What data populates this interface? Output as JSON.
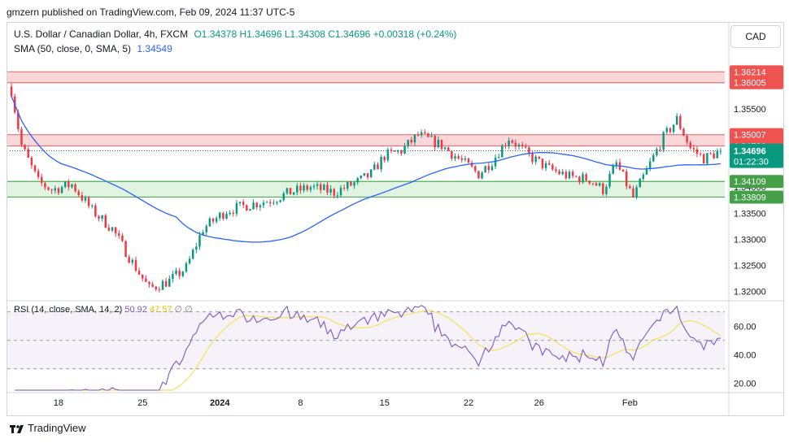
{
  "header": {
    "published": "gmzern published on TradingView.com, Feb 09, 2024 11:37 UTC-5"
  },
  "legend": {
    "symbol": "U.S. Dollar / Canadian Dollar, 4h, FXCM",
    "ohlc": "O1.34378 H1.34696 L1.34308 C1.34696 +0.00318 (+0.24%)",
    "sma_label": "SMA (50, close, 0, SMA, 5)",
    "sma_value": "1.34549",
    "rsi_label": "RSI (14, close, SMA, 14, 2)",
    "rsi_value": "50.92",
    "rsi_ma_value": "47.57",
    "rsi_extra": "∅ ∅"
  },
  "currency_button": "CAD",
  "footer": {
    "brand": "TradingView"
  },
  "colors": {
    "up": "#089981",
    "down": "#f23645",
    "sma": "#2962ff",
    "rsi": "#7e57c2",
    "rsi_ma": "#f5e05b",
    "resistance_fill": "#f7c9cc",
    "support_fill": "#d7f0d8",
    "resistance_line": "#e57373",
    "support_line": "#4caf50"
  },
  "chart_data": {
    "type": "candlestick",
    "title": "U.S. Dollar / Canadian Dollar, 4h, FXCM",
    "xlabel": "",
    "ylabel": "",
    "price_axis": {
      "ylim": [
        1.3185,
        1.365
      ],
      "ticks": [
        "1.35500",
        "1.35000",
        "1.34500",
        "1.34000",
        "1.33500",
        "1.33000",
        "1.32500",
        "1.32000"
      ],
      "tick_values": [
        1.355,
        1.35,
        1.345,
        1.34,
        1.335,
        1.33,
        1.325,
        1.32
      ]
    },
    "time_axis": {
      "labels": [
        "18",
        "25",
        "2024",
        "8",
        "15",
        "22",
        "26",
        "Feb"
      ],
      "label_bars": [
        14,
        39,
        62,
        86,
        111,
        136,
        157,
        184
      ]
    },
    "bar_count": 212,
    "anchors": [
      [
        0,
        1.3585
      ],
      [
        3,
        1.348
      ],
      [
        8,
        1.341
      ],
      [
        12,
        1.3395
      ],
      [
        18,
        1.3405
      ],
      [
        24,
        1.3355
      ],
      [
        30,
        1.332
      ],
      [
        36,
        1.3255
      ],
      [
        41,
        1.3205
      ],
      [
        47,
        1.322
      ],
      [
        52,
        1.3245
      ],
      [
        57,
        1.332
      ],
      [
        64,
        1.3355
      ],
      [
        70,
        1.3365
      ],
      [
        77,
        1.3375
      ],
      [
        83,
        1.339
      ],
      [
        89,
        1.34
      ],
      [
        96,
        1.339
      ],
      [
        103,
        1.341
      ],
      [
        107,
        1.3425
      ],
      [
        111,
        1.346
      ],
      [
        116,
        1.347
      ],
      [
        121,
        1.35
      ],
      [
        128,
        1.348
      ],
      [
        134,
        1.345
      ],
      [
        139,
        1.3425
      ],
      [
        143,
        1.345
      ],
      [
        148,
        1.3495
      ],
      [
        154,
        1.346
      ],
      [
        160,
        1.3435
      ],
      [
        166,
        1.342
      ],
      [
        172,
        1.3415
      ],
      [
        176,
        1.3395
      ],
      [
        180,
        1.3445
      ],
      [
        185,
        1.338
      ],
      [
        190,
        1.3445
      ],
      [
        194,
        1.3495
      ],
      [
        198,
        1.353
      ],
      [
        202,
        1.3475
      ],
      [
        206,
        1.3455
      ],
      [
        211,
        1.3469
      ]
    ],
    "levels": [
      {
        "name": "resistance-high",
        "top": 1.36214,
        "bottom": 1.36005,
        "top_label": "1.36214",
        "bottom_label": "1.36005"
      },
      {
        "name": "resistance-mid",
        "top": 1.35007,
        "bottom": 1.3479,
        "top_label": "1.35007",
        "bottom_label": "1.34790"
      },
      {
        "name": "support",
        "top": 1.34109,
        "bottom": 1.33809,
        "top_label": "1.34109",
        "bottom_label": "1.33809"
      }
    ],
    "last_price": 1.34696,
    "last_price_label": "1.34696",
    "countdown": "01:22:30",
    "sma_period": 50,
    "rsi": {
      "period": 14,
      "ylim": [
        15,
        75
      ],
      "ticks": [
        "60.00",
        "40.00",
        "20.00"
      ],
      "tick_values": [
        60,
        40,
        20
      ],
      "bands": [
        70,
        50,
        30
      ]
    }
  }
}
